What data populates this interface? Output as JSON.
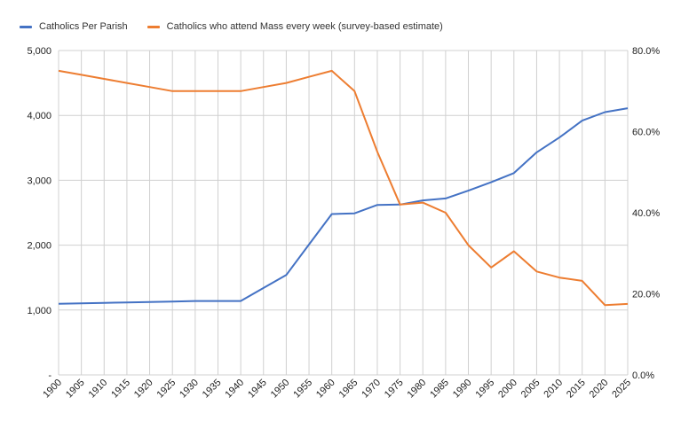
{
  "chart_data": {
    "type": "line",
    "x": [
      "1900",
      "1905",
      "1910",
      "1915",
      "1920",
      "1925",
      "1930",
      "1935",
      "1940",
      "1945",
      "1950",
      "1955",
      "1960",
      "1965",
      "1970",
      "1975",
      "1980",
      "1985",
      "1990",
      "1995",
      "2000",
      "2005",
      "2010",
      "2015",
      "2020",
      "2025"
    ],
    "series": [
      {
        "name": "Catholics Per Parish",
        "axis": "left",
        "color": "#4472c4",
        "values": [
          1095,
          1102,
          1110,
          1117,
          1124,
          1131,
          1139,
          1139,
          1139,
          1340,
          1540,
          2010,
          2480,
          2490,
          2620,
          2625,
          2690,
          2720,
          2840,
          2970,
          3110,
          3430,
          3660,
          3920,
          4050,
          4110
        ]
      },
      {
        "name": "Catholics who attend Mass every week (survey-based estimate)",
        "axis": "right",
        "color": "#ed7d31",
        "values": [
          75.0,
          74.0,
          73.0,
          72.0,
          71.0,
          70.0,
          70.0,
          70.0,
          70.0,
          71.0,
          72.0,
          73.5,
          75.0,
          70.0,
          55.0,
          42.0,
          42.5,
          40.0,
          32.0,
          26.5,
          30.5,
          25.5,
          24.0,
          23.2,
          17.2,
          17.5
        ]
      }
    ],
    "left_axis": {
      "ticks": [
        "-",
        "1,000",
        "2,000",
        "3,000",
        "4,000",
        "5,000"
      ],
      "min": 0,
      "max": 5000,
      "step": 1000
    },
    "right_axis": {
      "ticks": [
        "0.0%",
        "20.0%",
        "40.0%",
        "60.0%",
        "80.0%"
      ],
      "min": 0,
      "max": 80,
      "step": 20
    },
    "grid": true,
    "legend_position": "top-left"
  }
}
